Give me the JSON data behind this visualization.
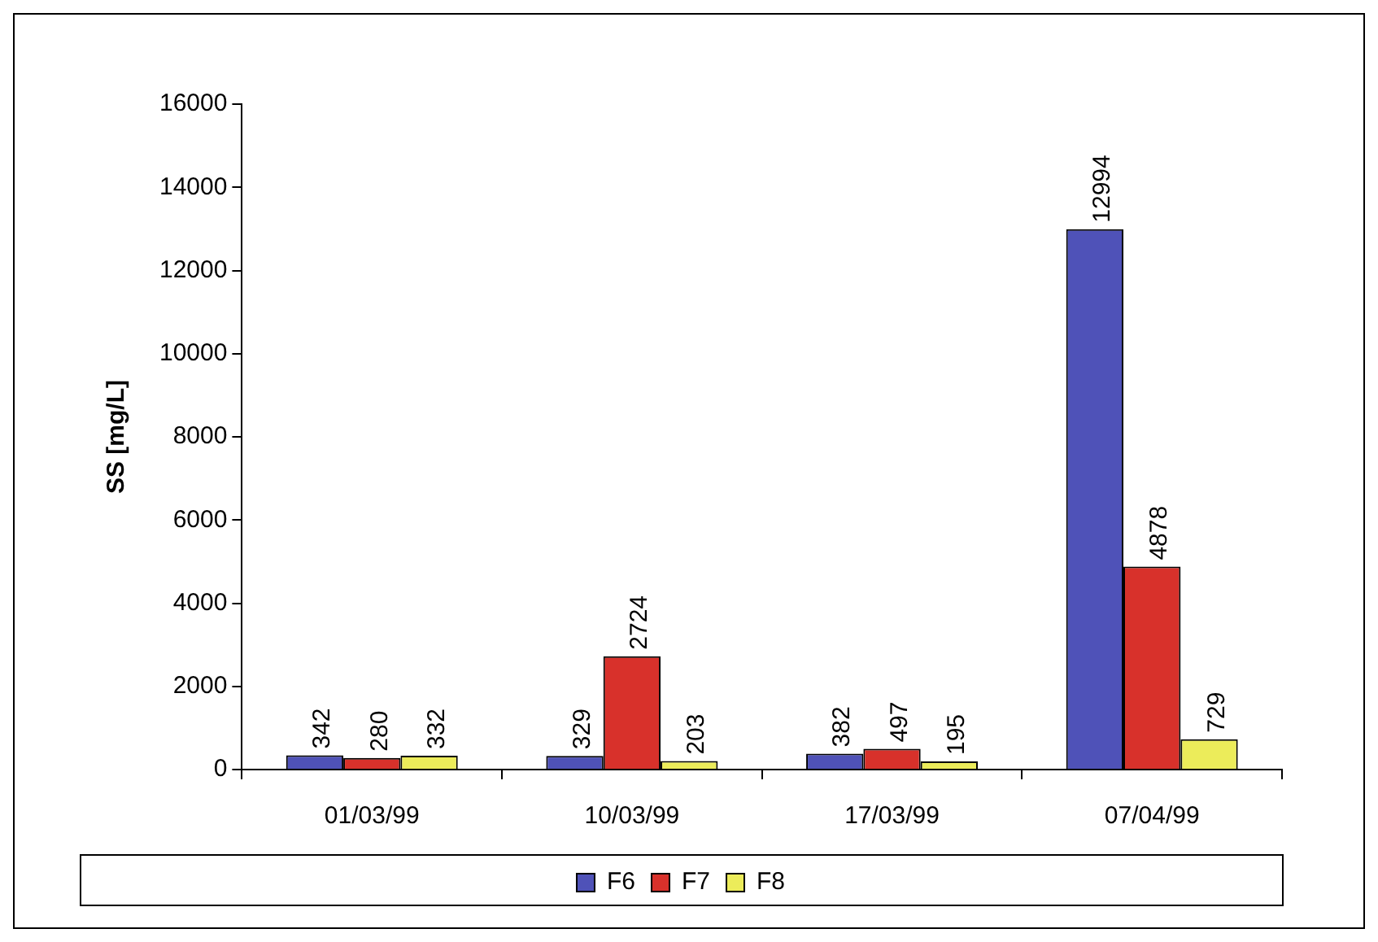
{
  "chart_data": {
    "type": "bar",
    "ylabel": "SS [mg/L]",
    "categories": [
      "01/03/99",
      "10/03/99",
      "17/03/99",
      "07/04/99"
    ],
    "series": [
      {
        "name": "F6",
        "color": "#4f52b8",
        "values": [
          342,
          329,
          382,
          12994
        ]
      },
      {
        "name": "F7",
        "color": "#d8312b",
        "values": [
          280,
          2724,
          497,
          4878
        ]
      },
      {
        "name": "F8",
        "color": "#ecec5a",
        "values": [
          332,
          203,
          195,
          729
        ]
      }
    ],
    "ylim": [
      0,
      16000
    ],
    "yticks": [
      0,
      2000,
      4000,
      6000,
      8000,
      10000,
      12000,
      14000,
      16000
    ],
    "grid": false,
    "legend": "bottom",
    "data_labels": true
  }
}
